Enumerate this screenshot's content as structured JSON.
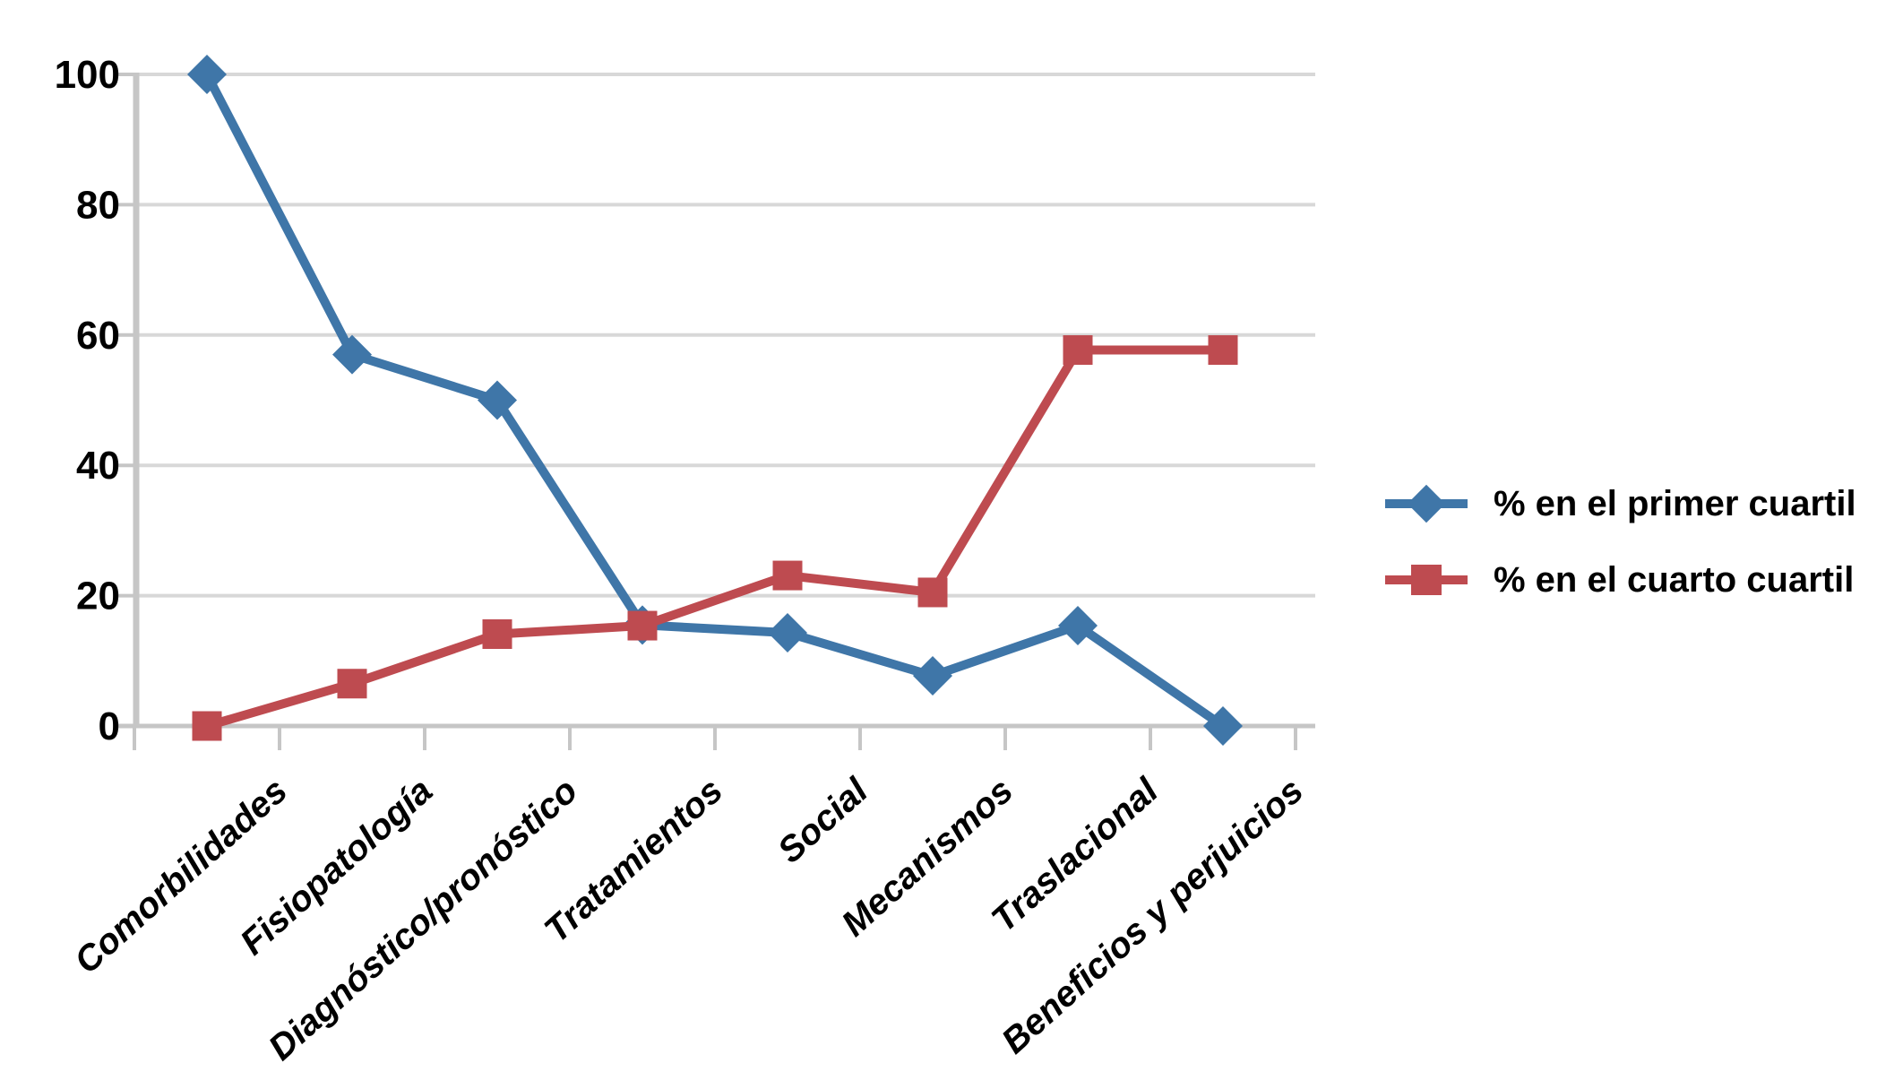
{
  "chart_data": {
    "type": "line",
    "title": "",
    "xlabel": "",
    "ylabel": "",
    "categories": [
      "Comorbilidades",
      "Fisiopatología",
      "Diagnóstico/pronóstico",
      "Tratamientos",
      "Social",
      "Mecanismos",
      "Traslacional",
      "Beneficios y perjuicios"
    ],
    "series": [
      {
        "name": "% en el primer cuartil",
        "marker": "diamond",
        "color": "#3F76A8",
        "values": [
          100,
          57,
          50,
          15.5,
          14.3,
          7.7,
          15.4,
          0
        ]
      },
      {
        "name": "% en el cuarto cuartil",
        "marker": "square",
        "color": "#BE4B50",
        "values": [
          0,
          6.5,
          14.1,
          15.4,
          23.1,
          20.5,
          57.7,
          57.7
        ]
      }
    ],
    "y_ticks": [
      0,
      20,
      40,
      60,
      80,
      100
    ],
    "ylim": [
      0,
      100
    ],
    "grid": true,
    "grid_color": "#D8D8D8",
    "axis_color": "#C6C6C6",
    "text_color": "#000000",
    "legend_position": "right-middle"
  }
}
